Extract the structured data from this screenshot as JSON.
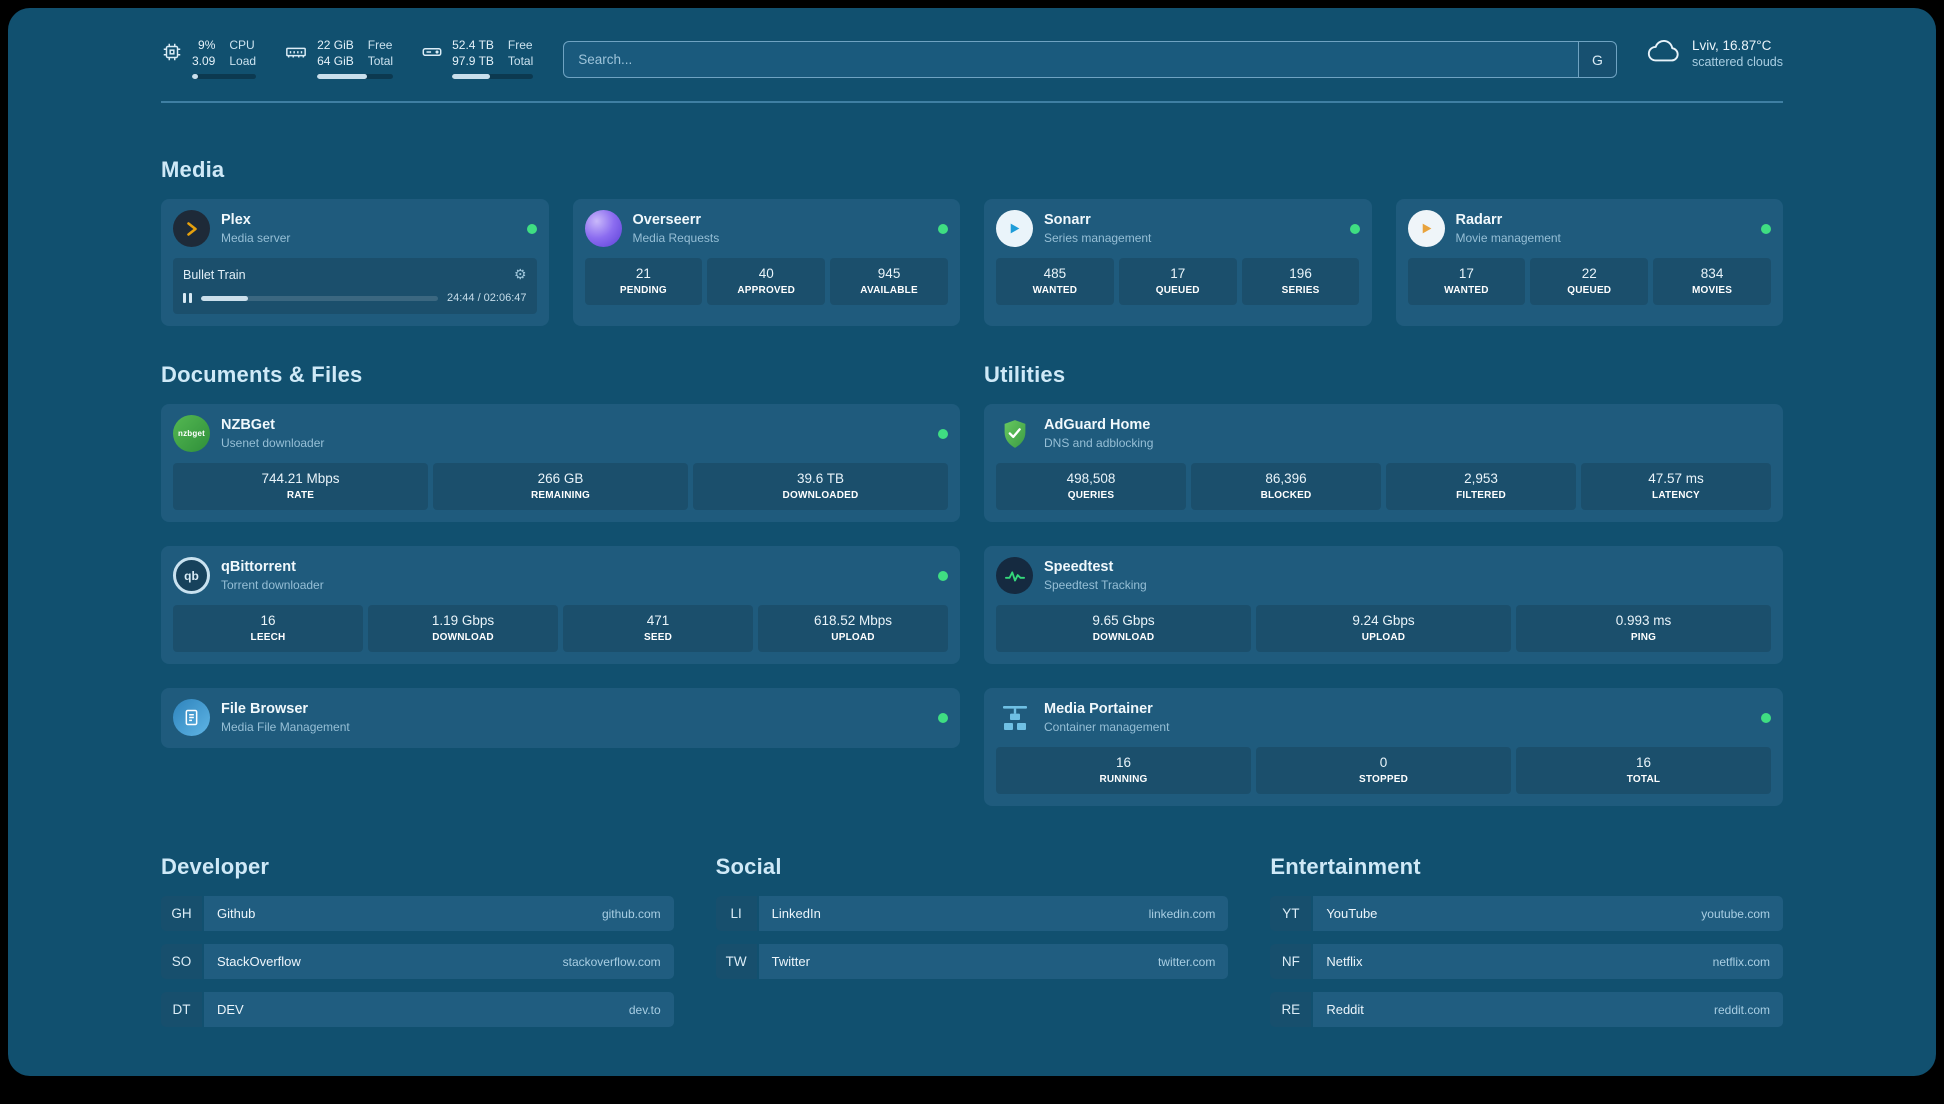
{
  "header": {
    "cpu": {
      "value1": "9%",
      "value2": "3.09",
      "label1": "CPU",
      "label2": "Load",
      "bar": 9
    },
    "memory": {
      "value1": "22 GiB",
      "value2": "64 GiB",
      "label1": "Free",
      "label2": "Total",
      "bar": 66
    },
    "disk": {
      "value1": "52.4 TB",
      "value2": "97.9 TB",
      "label1": "Free",
      "label2": "Total",
      "bar": 47
    },
    "search": {
      "placeholder": "Search...",
      "provider": "G"
    },
    "weather": {
      "location": "Lviv, 16.87°C",
      "condition": "scattered clouds"
    }
  },
  "sections": {
    "media": "Media",
    "documents": "Documents & Files",
    "utilities": "Utilities",
    "developer": "Developer",
    "social": "Social",
    "entertainment": "Entertainment"
  },
  "icons": {
    "gear": "⚙"
  },
  "services": {
    "plex": {
      "name": "Plex",
      "desc": "Media server",
      "media": "Bullet Train",
      "time": "24:44 / 02:06:47",
      "progress": 20
    },
    "overseerr": {
      "name": "Overseerr",
      "desc": "Media Requests",
      "stats": [
        {
          "value": "21",
          "label": "PENDING"
        },
        {
          "value": "40",
          "label": "APPROVED"
        },
        {
          "value": "945",
          "label": "AVAILABLE"
        }
      ]
    },
    "sonarr": {
      "name": "Sonarr",
      "desc": "Series management",
      "stats": [
        {
          "value": "485",
          "label": "WANTED"
        },
        {
          "value": "17",
          "label": "QUEUED"
        },
        {
          "value": "196",
          "label": "SERIES"
        }
      ]
    },
    "radarr": {
      "name": "Radarr",
      "desc": "Movie management",
      "stats": [
        {
          "value": "17",
          "label": "WANTED"
        },
        {
          "value": "22",
          "label": "QUEUED"
        },
        {
          "value": "834",
          "label": "MOVIES"
        }
      ]
    },
    "nzbget": {
      "name": "NZBGet",
      "desc": "Usenet downloader",
      "icon_text": "nzbget",
      "stats": [
        {
          "value": "744.21 Mbps",
          "label": "RATE"
        },
        {
          "value": "266 GB",
          "label": "REMAINING"
        },
        {
          "value": "39.6 TB",
          "label": "DOWNLOADED"
        }
      ]
    },
    "qbittorrent": {
      "name": "qBittorrent",
      "desc": "Torrent downloader",
      "icon_text": "qb",
      "stats": [
        {
          "value": "16",
          "label": "LEECH"
        },
        {
          "value": "1.19 Gbps",
          "label": "DOWNLOAD"
        },
        {
          "value": "471",
          "label": "SEED"
        },
        {
          "value": "618.52 Mbps",
          "label": "UPLOAD"
        }
      ]
    },
    "filebrowser": {
      "name": "File Browser",
      "desc": "Media File Management"
    },
    "adguard": {
      "name": "AdGuard Home",
      "desc": "DNS and adblocking",
      "stats": [
        {
          "value": "498,508",
          "label": "QUERIES"
        },
        {
          "value": "86,396",
          "label": "BLOCKED"
        },
        {
          "value": "2,953",
          "label": "FILTERED"
        },
        {
          "value": "47.57 ms",
          "label": "LATENCY"
        }
      ]
    },
    "speedtest": {
      "name": "Speedtest",
      "desc": "Speedtest Tracking",
      "stats": [
        {
          "value": "9.65 Gbps",
          "label": "DOWNLOAD"
        },
        {
          "value": "9.24 Gbps",
          "label": "UPLOAD"
        },
        {
          "value": "0.993 ms",
          "label": "PING"
        }
      ]
    },
    "portainer": {
      "name": "Media Portainer",
      "desc": "Container management",
      "stats": [
        {
          "value": "16",
          "label": "RUNNING"
        },
        {
          "value": "0",
          "label": "STOPPED"
        },
        {
          "value": "16",
          "label": "TOTAL"
        }
      ]
    }
  },
  "bookmarks": {
    "developer": [
      {
        "abbr": "GH",
        "name": "Github",
        "domain": "github.com"
      },
      {
        "abbr": "SO",
        "name": "StackOverflow",
        "domain": "stackoverflow.com"
      },
      {
        "abbr": "DT",
        "name": "DEV",
        "domain": "dev.to"
      }
    ],
    "social": [
      {
        "abbr": "LI",
        "name": "LinkedIn",
        "domain": "linkedin.com"
      },
      {
        "abbr": "TW",
        "name": "Twitter",
        "domain": "twitter.com"
      }
    ],
    "entertainment": [
      {
        "abbr": "YT",
        "name": "YouTube",
        "domain": "youtube.com"
      },
      {
        "abbr": "NF",
        "name": "Netflix",
        "domain": "netflix.com"
      },
      {
        "abbr": "RE",
        "name": "Reddit",
        "domain": "reddit.com"
      }
    ]
  }
}
